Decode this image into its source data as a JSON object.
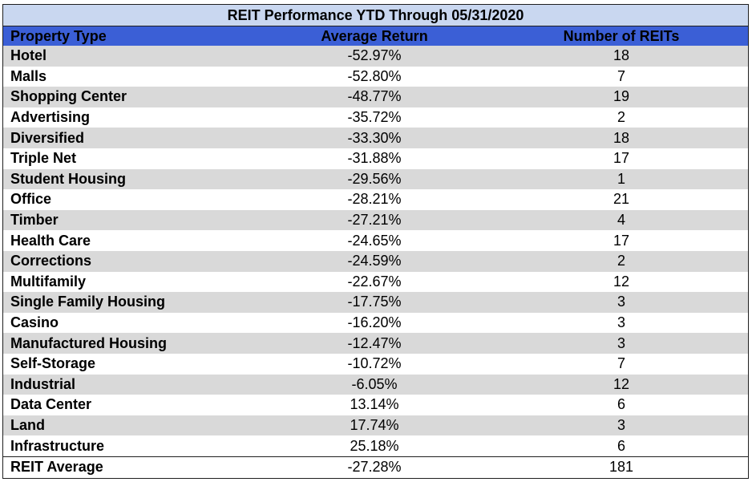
{
  "chart_data": {
    "type": "table",
    "title": "REIT Performance YTD Through 05/31/2020",
    "columns": [
      "Property Type",
      "Average Return",
      "Number of REITs"
    ],
    "rows": [
      [
        "Hotel",
        "-52.97%",
        "18"
      ],
      [
        "Malls",
        "-52.80%",
        "7"
      ],
      [
        "Shopping Center",
        "-48.77%",
        "19"
      ],
      [
        "Advertising",
        "-35.72%",
        "2"
      ],
      [
        "Diversified",
        "-33.30%",
        "18"
      ],
      [
        "Triple Net",
        "-31.88%",
        "17"
      ],
      [
        "Student Housing",
        "-29.56%",
        "1"
      ],
      [
        "Office",
        "-28.21%",
        "21"
      ],
      [
        "Timber",
        "-27.21%",
        "4"
      ],
      [
        "Health Care",
        "-24.65%",
        "17"
      ],
      [
        "Corrections",
        "-24.59%",
        "2"
      ],
      [
        "Multifamily",
        "-22.67%",
        "12"
      ],
      [
        "Single Family Housing",
        "-17.75%",
        "3"
      ],
      [
        "Casino",
        "-16.20%",
        "3"
      ],
      [
        "Manufactured Housing",
        "-12.47%",
        "3"
      ],
      [
        "Self-Storage",
        "-10.72%",
        "7"
      ],
      [
        "Industrial",
        "-6.05%",
        "12"
      ],
      [
        "Data Center",
        "13.14%",
        "6"
      ],
      [
        "Land",
        "17.74%",
        "3"
      ],
      [
        "Infrastructure",
        "25.18%",
        "6"
      ]
    ],
    "total": [
      "REIT Average",
      "-27.28%",
      "181"
    ]
  },
  "colors": {
    "title_bg": "#c9d7f0",
    "header_bg": "#3b5fd6",
    "stripe_bg": "#d9d9d9"
  }
}
